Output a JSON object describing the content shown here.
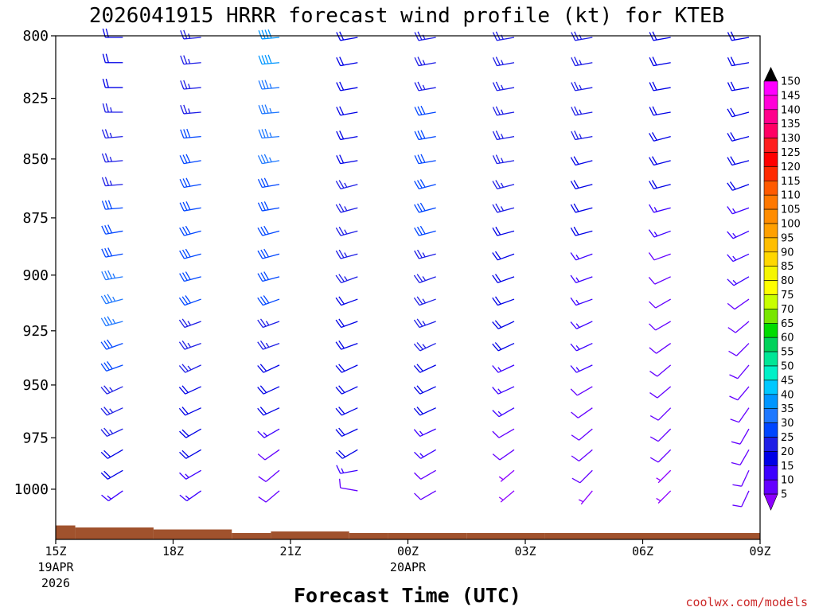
{
  "chart_data": {
    "type": "wind-barb profile",
    "title": "2026041915 HRRR forecast wind profile (kt) for KTEB",
    "xlabel": "Forecast Time (UTC)",
    "ylabel": "",
    "ylim": [
      1025,
      800
    ],
    "y_ticks": [
      "800",
      "825",
      "850",
      "875",
      "900",
      "925",
      "950",
      "975",
      "1000"
    ],
    "x_ticks": [
      {
        "label": "15Z",
        "sub1": "19APR",
        "sub2": "2026"
      },
      {
        "label": "18Z",
        "sub1": "",
        "sub2": ""
      },
      {
        "label": "21Z",
        "sub1": "",
        "sub2": ""
      },
      {
        "label": "00Z",
        "sub1": "20APR",
        "sub2": ""
      },
      {
        "label": "03Z",
        "sub1": "",
        "sub2": ""
      },
      {
        "label": "06Z",
        "sub1": "",
        "sub2": ""
      },
      {
        "label": "09Z",
        "sub1": "",
        "sub2": ""
      }
    ],
    "x_range_hours": [
      0,
      18
    ],
    "barb_columns_hours": [
      2,
      4,
      6,
      8,
      10,
      12,
      14,
      16,
      18
    ],
    "pressure_levels": [
      800,
      810,
      820,
      830,
      840,
      850,
      860,
      870,
      880,
      890,
      900,
      910,
      920,
      930,
      940,
      950,
      960,
      970,
      980,
      990,
      1000
    ],
    "surface_pressure": [
      {
        "start": 0,
        "end": 0.5,
        "p": 1018
      },
      {
        "start": 0.5,
        "end": 2.5,
        "p": 1019
      },
      {
        "start": 2.5,
        "end": 4.5,
        "p": 1020
      },
      {
        "start": 4.5,
        "end": 5.5,
        "p": 1022
      },
      {
        "start": 5.5,
        "end": 7.5,
        "p": 1021
      },
      {
        "start": 7.5,
        "end": 8.5,
        "p": 1022
      },
      {
        "start": 8.5,
        "end": 10.5,
        "p": 1023
      },
      {
        "start": 10.5,
        "end": 12.5,
        "p": 1024
      },
      {
        "start": 12.5,
        "end": 18,
        "p": 1025
      }
    ],
    "wind_speed_kt_by_column": [
      [
        20,
        20,
        20,
        25,
        25,
        25,
        25,
        30,
        30,
        30,
        35,
        35,
        35,
        30,
        30,
        25,
        25,
        25,
        20,
        20,
        15
      ],
      [
        25,
        25,
        25,
        25,
        30,
        30,
        30,
        30,
        30,
        30,
        30,
        30,
        25,
        25,
        25,
        20,
        20,
        20,
        20,
        15,
        15
      ],
      [
        40,
        40,
        35,
        35,
        35,
        35,
        30,
        30,
        30,
        30,
        30,
        30,
        25,
        25,
        20,
        20,
        20,
        15,
        10,
        10,
        10
      ],
      [
        20,
        20,
        20,
        20,
        20,
        20,
        25,
        25,
        25,
        25,
        25,
        20,
        20,
        20,
        20,
        20,
        20,
        20,
        20,
        15,
        10
      ],
      [
        25,
        25,
        25,
        30,
        30,
        30,
        30,
        30,
        30,
        25,
        25,
        25,
        25,
        25,
        20,
        20,
        20,
        15,
        15,
        10,
        10
      ],
      [
        25,
        25,
        25,
        25,
        25,
        25,
        25,
        25,
        20,
        20,
        20,
        20,
        20,
        20,
        15,
        15,
        15,
        10,
        10,
        5,
        5
      ],
      [
        25,
        25,
        25,
        25,
        25,
        20,
        20,
        20,
        20,
        15,
        15,
        15,
        15,
        15,
        15,
        10,
        10,
        10,
        10,
        10,
        5
      ],
      [
        20,
        20,
        20,
        20,
        20,
        20,
        20,
        15,
        15,
        10,
        10,
        10,
        10,
        10,
        10,
        10,
        10,
        10,
        10,
        5,
        5
      ],
      [
        20,
        20,
        20,
        20,
        20,
        20,
        20,
        15,
        15,
        15,
        15,
        10,
        10,
        10,
        10,
        10,
        10,
        10,
        10,
        10,
        10
      ]
    ],
    "wind_dir_deg_by_column": [
      [
        270,
        270,
        270,
        270,
        265,
        265,
        265,
        265,
        260,
        260,
        260,
        255,
        255,
        250,
        250,
        245,
        245,
        245,
        240,
        240,
        235
      ],
      [
        265,
        265,
        265,
        265,
        265,
        260,
        260,
        260,
        255,
        255,
        255,
        250,
        250,
        250,
        245,
        245,
        245,
        240,
        240,
        240,
        235
      ],
      [
        265,
        265,
        265,
        265,
        265,
        260,
        260,
        260,
        255,
        255,
        255,
        250,
        250,
        250,
        245,
        245,
        245,
        240,
        235,
        230,
        230
      ],
      [
        260,
        260,
        260,
        260,
        260,
        260,
        255,
        255,
        255,
        255,
        250,
        250,
        250,
        250,
        245,
        245,
        245,
        245,
        240,
        260,
        280
      ],
      [
        260,
        260,
        260,
        260,
        260,
        260,
        255,
        255,
        255,
        255,
        250,
        250,
        250,
        245,
        245,
        245,
        245,
        245,
        240,
        240,
        240
      ],
      [
        260,
        260,
        260,
        260,
        260,
        260,
        255,
        255,
        255,
        250,
        250,
        250,
        245,
        245,
        245,
        245,
        240,
        240,
        235,
        230,
        230
      ],
      [
        260,
        260,
        260,
        260,
        260,
        255,
        255,
        255,
        255,
        250,
        250,
        250,
        245,
        245,
        245,
        240,
        235,
        230,
        230,
        225,
        220
      ],
      [
        260,
        260,
        260,
        260,
        255,
        255,
        255,
        255,
        250,
        250,
        245,
        240,
        240,
        235,
        230,
        230,
        225,
        225,
        225,
        225,
        225
      ],
      [
        260,
        260,
        260,
        255,
        255,
        255,
        250,
        250,
        245,
        245,
        240,
        235,
        230,
        225,
        220,
        220,
        215,
        210,
        210,
        205,
        205
      ]
    ],
    "colorbar": {
      "levels": [
        "150",
        "145",
        "140",
        "135",
        "130",
        "125",
        "120",
        "115",
        "110",
        "105",
        "100",
        "95",
        "90",
        "85",
        "80",
        "75",
        "70",
        "65",
        "60",
        "55",
        "50",
        "45",
        "40",
        "35",
        "30",
        "25",
        "20",
        "15",
        "10",
        "5"
      ],
      "colors": [
        "#ff00ff",
        "#ff00d8",
        "#ff008c",
        "#ff0064",
        "#ff1e1e",
        "#ff0000",
        "#ff2a00",
        "#ff5a00",
        "#ff7800",
        "#ff8c00",
        "#ffa000",
        "#ffbe00",
        "#ffd700",
        "#f5f500",
        "#ffff00",
        "#c8ff00",
        "#78e600",
        "#00dc00",
        "#00d25a",
        "#00e696",
        "#00f0c8",
        "#00c8ff",
        "#0096ff",
        "#1e78ff",
        "#0046ff",
        "#1e1ee6",
        "#0000e6",
        "#3c00ff",
        "#6400ff",
        "#8c00ff"
      ],
      "top_color": "#000000"
    }
  },
  "credit": "coolwx.com/models"
}
